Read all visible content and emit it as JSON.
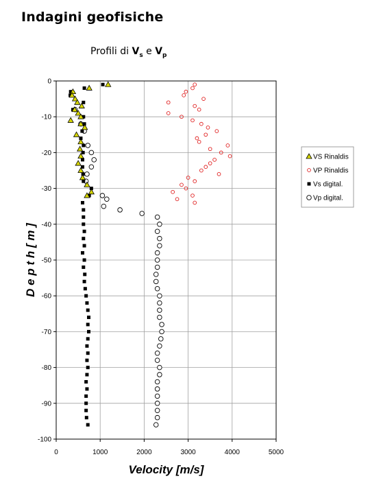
{
  "header": {
    "title": "Indagini geofisiche",
    "subtitle_prefix": "Profili di ",
    "subtitle_v1": "V",
    "subtitle_sub1": "s",
    "subtitle_mid": " e ",
    "subtitle_v2": "V",
    "subtitle_sub2": "p"
  },
  "chart_data": {
    "type": "scatter",
    "xlabel": "Velocity [m/s]",
    "ylabel": "D e p t h  [ m ]",
    "xlim": [
      0,
      5000
    ],
    "ylim": [
      -100,
      0
    ],
    "xticks": [
      0,
      1000,
      2000,
      3000,
      4000,
      5000
    ],
    "yticks": [
      0,
      -10,
      -20,
      -30,
      -40,
      -50,
      -60,
      -70,
      -80,
      -90,
      -100
    ],
    "grid": true,
    "legend_position": "right",
    "series": [
      {
        "name": "VS Rinaldis",
        "marker": "triangle",
        "color": "#d8d800",
        "points": [
          [
            1180,
            -1
          ],
          [
            750,
            -2
          ],
          [
            380,
            -3
          ],
          [
            360,
            -4
          ],
          [
            430,
            -5
          ],
          [
            480,
            -6
          ],
          [
            580,
            -7
          ],
          [
            420,
            -8
          ],
          [
            500,
            -9
          ],
          [
            560,
            -10
          ],
          [
            330,
            -11
          ],
          [
            560,
            -12
          ],
          [
            650,
            -13
          ],
          [
            460,
            -15
          ],
          [
            560,
            -17
          ],
          [
            540,
            -19
          ],
          [
            560,
            -21
          ],
          [
            500,
            -23
          ],
          [
            560,
            -25
          ],
          [
            600,
            -27
          ],
          [
            700,
            -29
          ],
          [
            800,
            -31
          ],
          [
            700,
            -32
          ]
        ]
      },
      {
        "name": "VP Rinaldis",
        "marker": "circle",
        "color": "#e02020",
        "points": [
          [
            3150,
            -1
          ],
          [
            3100,
            -2
          ],
          [
            2950,
            -3
          ],
          [
            2900,
            -4
          ],
          [
            3350,
            -5
          ],
          [
            2550,
            -6
          ],
          [
            3150,
            -7
          ],
          [
            3250,
            -8
          ],
          [
            2550,
            -9
          ],
          [
            2850,
            -10
          ],
          [
            3100,
            -11
          ],
          [
            3300,
            -12
          ],
          [
            3450,
            -13
          ],
          [
            3650,
            -14
          ],
          [
            3400,
            -15
          ],
          [
            3200,
            -16
          ],
          [
            3250,
            -17
          ],
          [
            3900,
            -18
          ],
          [
            3500,
            -19
          ],
          [
            3750,
            -20
          ],
          [
            3950,
            -21
          ],
          [
            3600,
            -22
          ],
          [
            3500,
            -23
          ],
          [
            3400,
            -24
          ],
          [
            3300,
            -25
          ],
          [
            3700,
            -26
          ],
          [
            3000,
            -27
          ],
          [
            3150,
            -28
          ],
          [
            2850,
            -29
          ],
          [
            2950,
            -30
          ],
          [
            2650,
            -31
          ],
          [
            3100,
            -32
          ],
          [
            2750,
            -33
          ],
          [
            3150,
            -34
          ]
        ]
      },
      {
        "name": "Vs digital.",
        "marker": "square",
        "color": "#000000",
        "points": [
          [
            1060,
            -1
          ],
          [
            640,
            -2
          ],
          [
            330,
            -3
          ],
          [
            320,
            -4
          ],
          [
            620,
            -6
          ],
          [
            380,
            -8
          ],
          [
            620,
            -10
          ],
          [
            640,
            -12
          ],
          [
            590,
            -14
          ],
          [
            560,
            -16
          ],
          [
            620,
            -18
          ],
          [
            610,
            -20
          ],
          [
            600,
            -22
          ],
          [
            600,
            -24
          ],
          [
            610,
            -26
          ],
          [
            620,
            -28
          ],
          [
            800,
            -30
          ],
          [
            750,
            -32
          ],
          [
            600,
            -34
          ],
          [
            620,
            -36
          ],
          [
            620,
            -38
          ],
          [
            620,
            -40
          ],
          [
            640,
            -42
          ],
          [
            620,
            -44
          ],
          [
            640,
            -46
          ],
          [
            600,
            -48
          ],
          [
            640,
            -50
          ],
          [
            620,
            -52
          ],
          [
            650,
            -54
          ],
          [
            640,
            -56
          ],
          [
            660,
            -58
          ],
          [
            680,
            -60
          ],
          [
            700,
            -62
          ],
          [
            720,
            -64
          ],
          [
            740,
            -66
          ],
          [
            720,
            -68
          ],
          [
            740,
            -70
          ],
          [
            720,
            -72
          ],
          [
            700,
            -74
          ],
          [
            720,
            -76
          ],
          [
            700,
            -78
          ],
          [
            720,
            -80
          ],
          [
            700,
            -82
          ],
          [
            680,
            -84
          ],
          [
            700,
            -86
          ],
          [
            680,
            -88
          ],
          [
            680,
            -90
          ],
          [
            680,
            -92
          ],
          [
            690,
            -94
          ],
          [
            720,
            -96
          ]
        ]
      },
      {
        "name": "Vp digital.",
        "marker": "open-circle",
        "color": "#000000",
        "points": [
          [
            430,
            -8
          ],
          [
            560,
            -12
          ],
          [
            640,
            -14
          ],
          [
            720,
            -18
          ],
          [
            800,
            -20
          ],
          [
            860,
            -22
          ],
          [
            800,
            -24
          ],
          [
            700,
            -26
          ],
          [
            680,
            -28
          ],
          [
            1050,
            -32
          ],
          [
            1150,
            -33
          ],
          [
            1080,
            -35
          ],
          [
            1450,
            -36
          ],
          [
            1950,
            -37
          ],
          [
            2300,
            -38
          ],
          [
            2350,
            -40
          ],
          [
            2300,
            -42
          ],
          [
            2350,
            -44
          ],
          [
            2350,
            -46
          ],
          [
            2300,
            -48
          ],
          [
            2300,
            -50
          ],
          [
            2300,
            -52
          ],
          [
            2270,
            -54
          ],
          [
            2270,
            -56
          ],
          [
            2300,
            -58
          ],
          [
            2350,
            -60
          ],
          [
            2350,
            -62
          ],
          [
            2350,
            -64
          ],
          [
            2350,
            -66
          ],
          [
            2400,
            -68
          ],
          [
            2400,
            -70
          ],
          [
            2380,
            -72
          ],
          [
            2350,
            -74
          ],
          [
            2300,
            -76
          ],
          [
            2300,
            -78
          ],
          [
            2350,
            -80
          ],
          [
            2350,
            -82
          ],
          [
            2300,
            -84
          ],
          [
            2300,
            -86
          ],
          [
            2300,
            -88
          ],
          [
            2300,
            -90
          ],
          [
            2300,
            -92
          ],
          [
            2300,
            -94
          ],
          [
            2270,
            -96
          ]
        ]
      }
    ]
  }
}
